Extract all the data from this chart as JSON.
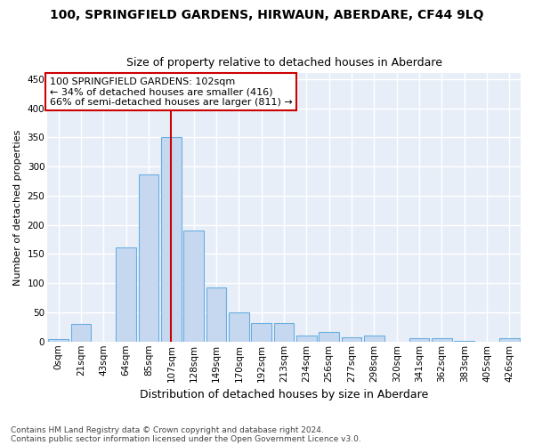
{
  "title": "100, SPRINGFIELD GARDENS, HIRWAUN, ABERDARE, CF44 9LQ",
  "subtitle": "Size of property relative to detached houses in Aberdare",
  "xlabel": "Distribution of detached houses by size in Aberdare",
  "ylabel": "Number of detached properties",
  "bar_color": "#c5d8f0",
  "bar_edge_color": "#6aaee0",
  "categories": [
    "0sqm",
    "21sqm",
    "43sqm",
    "64sqm",
    "85sqm",
    "107sqm",
    "128sqm",
    "149sqm",
    "170sqm",
    "192sqm",
    "213sqm",
    "234sqm",
    "256sqm",
    "277sqm",
    "298sqm",
    "320sqm",
    "341sqm",
    "362sqm",
    "383sqm",
    "405sqm",
    "426sqm"
  ],
  "values": [
    4,
    30,
    0,
    162,
    287,
    350,
    191,
    93,
    50,
    31,
    31,
    11,
    16,
    7,
    10,
    0,
    5,
    5,
    1,
    0,
    5
  ],
  "ylim": [
    0,
    460
  ],
  "yticks": [
    0,
    50,
    100,
    150,
    200,
    250,
    300,
    350,
    400,
    450
  ],
  "annotation_title": "100 SPRINGFIELD GARDENS: 102sqm",
  "annotation_line1": "← 34% of detached houses are smaller (416)",
  "annotation_line2": "66% of semi-detached houses are larger (811) →",
  "vline_color": "#cc0000",
  "vline_x": 5,
  "footer1": "Contains HM Land Registry data © Crown copyright and database right 2024.",
  "footer2": "Contains public sector information licensed under the Open Government Licence v3.0.",
  "background_color": "#e8eef8",
  "grid_color": "#ffffff",
  "fig_background": "#ffffff",
  "title_fontsize": 10,
  "subtitle_fontsize": 9,
  "ylabel_fontsize": 8,
  "xlabel_fontsize": 9,
  "tick_fontsize": 7.5,
  "annotation_fontsize": 8,
  "footer_fontsize": 6.5
}
